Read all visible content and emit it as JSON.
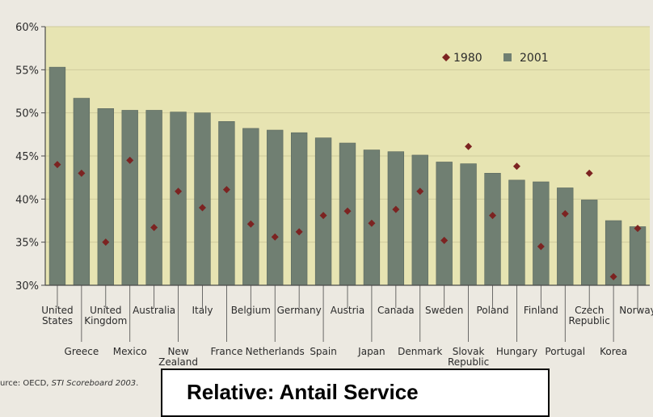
{
  "chart_data": {
    "type": "bar",
    "title": "",
    "xlabel": "",
    "ylabel": "",
    "ylim": [
      30,
      60
    ],
    "yticks": [
      "30%",
      "35%",
      "40%",
      "45%",
      "50%",
      "55%",
      "60%"
    ],
    "ytick_values": [
      30,
      35,
      40,
      45,
      50,
      55,
      60
    ],
    "grid": true,
    "legend_position": "top-right",
    "categories": [
      "United States",
      "Greece",
      "United Kingdom",
      "Mexico",
      "Australia",
      "New Zealand",
      "Italy",
      "France",
      "Belgium",
      "Netherlands",
      "Germany",
      "Spain",
      "Austria",
      "Japan",
      "Canada",
      "Denmark",
      "Sweden",
      "Slovak Republic",
      "Poland",
      "Hungary",
      "Finland",
      "Portugal",
      "Czech Republic",
      "Korea",
      "Norway"
    ],
    "category_labels": [
      [
        "United",
        "States"
      ],
      [
        "Greece"
      ],
      [
        "United",
        "Kingdom"
      ],
      [
        "Mexico"
      ],
      [
        "Australia"
      ],
      [
        "New",
        "Zealand"
      ],
      [
        "Italy"
      ],
      [
        "France"
      ],
      [
        "Belgium"
      ],
      [
        "Netherlands"
      ],
      [
        "Germany"
      ],
      [
        "Spain"
      ],
      [
        "Austria"
      ],
      [
        "Japan"
      ],
      [
        "Canada"
      ],
      [
        "Denmark"
      ],
      [
        "Sweden"
      ],
      [
        "Slovak",
        "Republic"
      ],
      [
        "Poland"
      ],
      [
        "Hungary"
      ],
      [
        "Finland"
      ],
      [
        "Portugal"
      ],
      [
        "Czech",
        "Republic"
      ],
      [
        "Korea"
      ],
      [
        "Norway"
      ]
    ],
    "series": [
      {
        "name": "1980",
        "marker": "diamond",
        "values": [
          44,
          43,
          35,
          44.5,
          36.7,
          40.9,
          39,
          41.1,
          37.1,
          35.6,
          36.2,
          38.1,
          38.6,
          37.2,
          38.8,
          40.9,
          35.2,
          46.1,
          38.1,
          43.8,
          34.5,
          38.3,
          43,
          31,
          36.6
        ]
      },
      {
        "name": "2001",
        "marker": "bar",
        "values": [
          55.3,
          51.7,
          50.5,
          50.3,
          50.3,
          50.1,
          50,
          49,
          48.2,
          48,
          47.7,
          47.1,
          46.5,
          45.7,
          45.5,
          45.1,
          44.3,
          44.1,
          43,
          42.2,
          42,
          41.3,
          39.9,
          37.5,
          36.8
        ]
      }
    ]
  },
  "colors": {
    "plot_bg": "#e7e4b2",
    "bar": "#707f72",
    "bar_stroke": "#5b685e",
    "marker": "#7c2321",
    "axis": "#4a4a4a",
    "grid": "#cfcb9c"
  },
  "source": {
    "prefix": "urce: OECD, ",
    "italic": "STI Scoreboard 2003",
    "suffix": "."
  },
  "caption": "Relative: Antail Service"
}
